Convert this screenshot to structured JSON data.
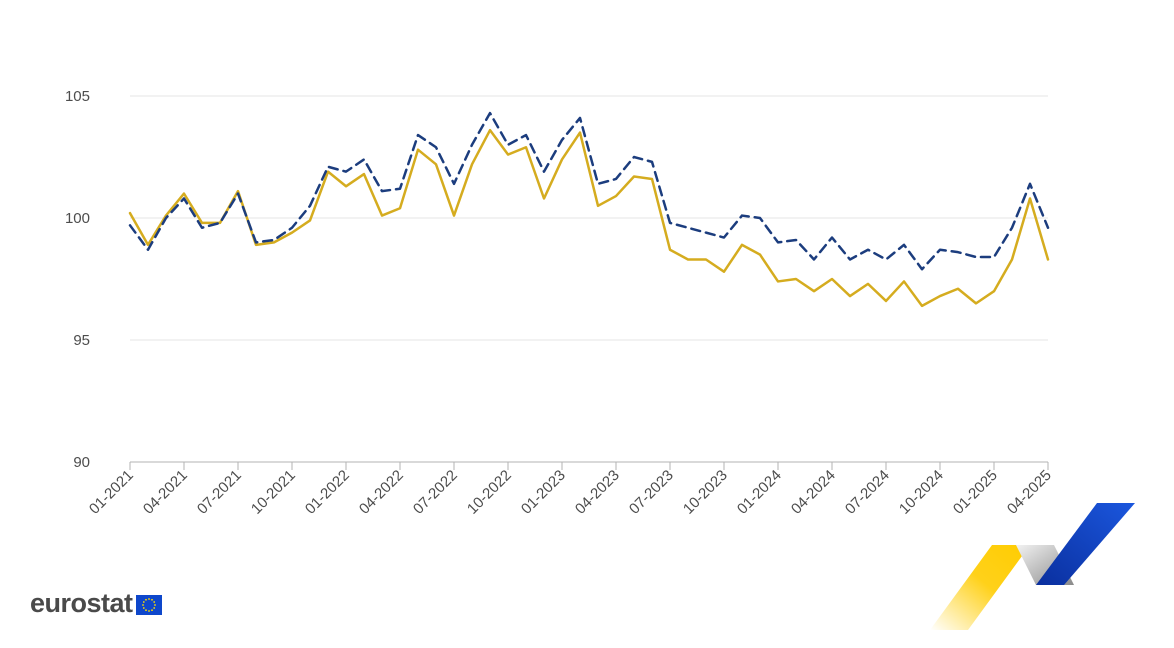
{
  "chart_data": {
    "type": "line",
    "title": "",
    "xlabel": "",
    "ylabel": "",
    "ylim": [
      90,
      105
    ],
    "y_ticks": [
      "90",
      "95",
      "100",
      "105"
    ],
    "x": [
      "01-2021",
      "02-2021",
      "03-2021",
      "04-2021",
      "05-2021",
      "06-2021",
      "07-2021",
      "08-2021",
      "09-2021",
      "10-2021",
      "11-2021",
      "12-2021",
      "01-2022",
      "02-2022",
      "03-2022",
      "04-2022",
      "05-2022",
      "06-2022",
      "07-2022",
      "08-2022",
      "09-2022",
      "10-2022",
      "11-2022",
      "12-2022",
      "01-2023",
      "02-2023",
      "03-2023",
      "04-2023",
      "05-2023",
      "06-2023",
      "07-2023",
      "08-2023",
      "09-2023",
      "10-2023",
      "11-2023",
      "12-2023",
      "01-2024",
      "02-2024",
      "03-2024",
      "04-2024",
      "05-2024",
      "06-2024",
      "07-2024",
      "08-2024",
      "09-2024",
      "10-2024",
      "11-2024",
      "12-2024",
      "01-2025",
      "02-2025",
      "03-2025",
      "04-2025"
    ],
    "x_tick_labels": [
      "01-2021",
      "04-2021",
      "07-2021",
      "10-2021",
      "01-2022",
      "04-2022",
      "07-2022",
      "10-2022",
      "01-2023",
      "04-2023",
      "07-2023",
      "10-2023",
      "01-2024",
      "04-2024",
      "07-2024",
      "10-2024",
      "01-2025",
      "04-2025"
    ],
    "grid": true,
    "series": [
      {
        "color": "#d5ac1f",
        "style": "solid",
        "values": [
          100.2,
          98.9,
          100.1,
          101.0,
          99.8,
          99.8,
          101.1,
          98.9,
          99.0,
          99.4,
          99.9,
          101.9,
          101.3,
          101.8,
          100.1,
          100.4,
          102.8,
          102.2,
          100.1,
          102.2,
          103.6,
          102.6,
          102.9,
          100.8,
          102.4,
          103.5,
          100.5,
          100.9,
          101.7,
          101.6,
          98.7,
          98.3,
          98.3,
          97.8,
          98.9,
          98.5,
          97.4,
          97.5,
          97.0,
          97.5,
          96.8,
          97.3,
          96.6,
          97.4,
          96.4,
          96.8,
          97.1,
          96.5,
          97.0,
          98.3,
          100.8,
          98.3
        ]
      },
      {
        "color": "#1c3d7e",
        "style": "dashed",
        "values": [
          99.7,
          98.7,
          100.0,
          100.8,
          99.6,
          99.8,
          101.0,
          99.0,
          99.1,
          99.6,
          100.5,
          102.1,
          101.9,
          102.4,
          101.1,
          101.2,
          103.4,
          102.9,
          101.4,
          103.0,
          104.3,
          103.0,
          103.4,
          101.9,
          103.2,
          104.1,
          101.4,
          101.6,
          102.5,
          102.3,
          99.8,
          99.6,
          99.4,
          99.2,
          100.1,
          100.0,
          99.0,
          99.1,
          98.3,
          99.2,
          98.3,
          98.7,
          98.3,
          98.9,
          97.9,
          98.7,
          98.6,
          98.4,
          98.4,
          99.6,
          101.4,
          99.6
        ]
      }
    ]
  },
  "logo": {
    "text": "eurostat"
  }
}
